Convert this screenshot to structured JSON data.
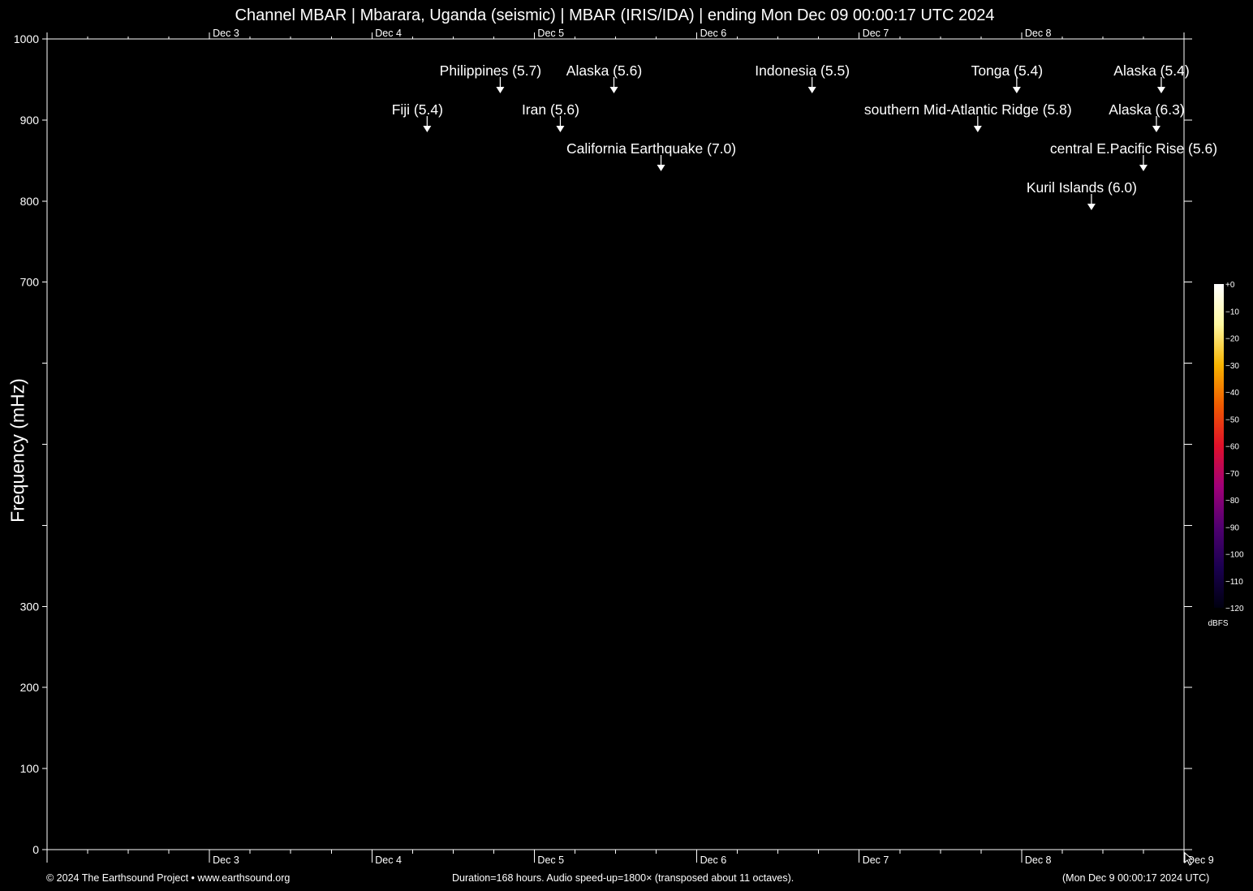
{
  "footer": {
    "copyright": "© 2024 The Earthsound Project • www.earthsound.org",
    "duration": "Duration=168 hours. Audio speed-up=1800× (transposed about 11 octaves).",
    "timestamp": "(Mon Dec  9 00:00:17 2024 UTC)"
  },
  "colors": {
    "background": "#000000",
    "axis": "#ffffff",
    "text": "#ffffff",
    "colormap": [
      "#000010",
      "#1a0050",
      "#500070",
      "#a00078",
      "#e0102a",
      "#f05a00",
      "#f8b400",
      "#fff8a0",
      "#ffffff"
    ]
  },
  "chart_data": {
    "type": "heatmap",
    "title": "Channel MBAR | Mbarara, Uganda (seismic) | MBAR (IRIS/IDA) | ending Mon Dec 09 00:00:17 UTC 2024",
    "xlabel": "",
    "ylabel": "Frequency (mHz)",
    "ylim": [
      0,
      1000
    ],
    "xlim_days": [
      "Dec 2",
      "Dec 9"
    ],
    "y_tick_labels": [
      "0",
      "100",
      "200",
      "300",
      "700",
      "800",
      "900",
      "1000"
    ],
    "y_tick_values": [
      0,
      100,
      200,
      300,
      700,
      800,
      900,
      1000
    ],
    "y_minor_ticks": [
      400,
      500,
      600
    ],
    "x_tick_labels": [
      "Dec  3",
      "Dec  4",
      "Dec  5",
      "Dec  6",
      "Dec  7",
      "Dec  8",
      "Dec  9"
    ],
    "x_top_tick_labels": [
      "Dec  3",
      "Dec  4",
      "Dec  5",
      "Dec  6",
      "Dec  7",
      "Dec  8"
    ],
    "colorbar": {
      "label": "dBFS",
      "ticks": [
        "+0",
        "−10",
        "−20",
        "−30",
        "−40",
        "−50",
        "−60",
        "−70",
        "−80",
        "−90",
        "−100",
        "−110",
        "−120"
      ]
    },
    "annotations": [
      {
        "text": "Philippines (5.7)",
        "day": 2.79,
        "row": 0
      },
      {
        "text": "Alaska (5.6)",
        "day": 3.49,
        "row": 0
      },
      {
        "text": "Indonesia (5.5)",
        "day": 4.71,
        "row": 0
      },
      {
        "text": "Tonga (5.4)",
        "day": 5.97,
        "row": 0
      },
      {
        "text": "Alaska (5.4)",
        "day": 6.86,
        "row": 0
      },
      {
        "text": "Fiji (5.4)",
        "day": 2.34,
        "row": 1
      },
      {
        "text": "Iran (5.6)",
        "day": 3.16,
        "row": 1
      },
      {
        "text": "southern Mid-Atlantic Ridge (5.8)",
        "day": 5.73,
        "row": 1
      },
      {
        "text": "Alaska (6.3)",
        "day": 6.83,
        "row": 1
      },
      {
        "text": "California Earthquake (7.0)",
        "day": 3.78,
        "row": 2
      },
      {
        "text": "central E.Pacific Rise (5.6)",
        "day": 6.75,
        "row": 2
      },
      {
        "text": "Kuril Islands (6.0)",
        "day": 6.43,
        "row": 3
      }
    ]
  }
}
